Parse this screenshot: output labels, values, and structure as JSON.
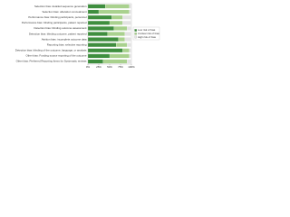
{
  "chart_data": {
    "type": "stacked_bar_horizontal",
    "categories": [
      "Selection bias: detailed sequence generation",
      "Selection bias: allocation concealment",
      "Performance bias: blinding participants, personnel",
      "Performance bias: blinding participants, patient reported",
      "Detection bias: blinding outcome assessment",
      "Detection bias: blinding outcome, patient reported",
      "Attrition bias: incomplete outcome data",
      "Reporting bias: selective reporting",
      "Detection bias: blinding of the outcome, language, or analysis",
      "Other bias: Funding source reporting of the outcome",
      "Other bias: Preferred Reporting Items for Systematic reviews"
    ],
    "series": [
      {
        "name": "Low risk of bias",
        "color": "#3e8e3e",
        "values": [
          40,
          25,
          55,
          50,
          60,
          45,
          70,
          65,
          80,
          50,
          35
        ]
      },
      {
        "name": "Unclear risk of bias",
        "color": "#a9d18e",
        "values": [
          55,
          70,
          25,
          30,
          30,
          40,
          15,
          25,
          15,
          45,
          55
        ]
      },
      {
        "name": "High risk of bias",
        "color": "#e3e3e3",
        "values": [
          5,
          5,
          20,
          20,
          10,
          15,
          15,
          10,
          5,
          5,
          10
        ]
      }
    ],
    "xlim": [
      0,
      100
    ],
    "xticks": [
      {
        "value": 0,
        "label": "0%"
      },
      {
        "value": 25,
        "label": "25%"
      },
      {
        "value": 50,
        "label": "50%"
      },
      {
        "value": 75,
        "label": "75%"
      },
      {
        "value": 100,
        "label": "100%"
      }
    ],
    "legend": "right"
  }
}
